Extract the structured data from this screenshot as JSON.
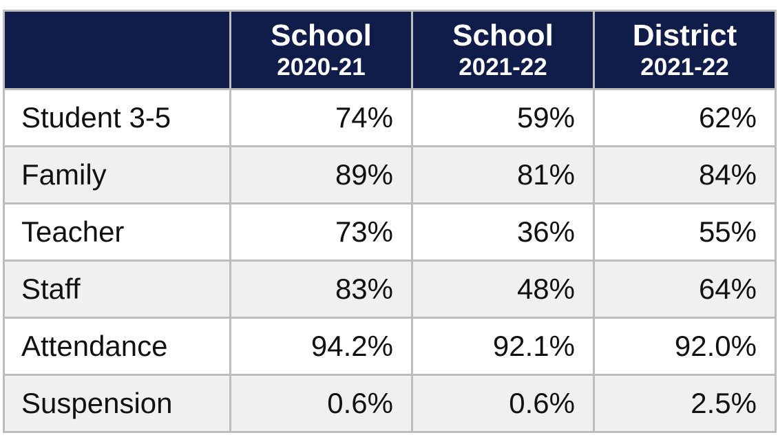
{
  "table": {
    "columns": [
      {
        "line1": "School",
        "line2": "2020-21"
      },
      {
        "line1": "School",
        "line2": "2021-22"
      },
      {
        "line1": "District",
        "line2": "2021-22"
      }
    ],
    "rows": [
      [
        "Student 3-5",
        "74%",
        "59%",
        "62%"
      ],
      [
        "Family",
        "89%",
        "81%",
        "84%"
      ],
      [
        "Teacher",
        "73%",
        "36%",
        "55%"
      ],
      [
        "Staff",
        "83%",
        "48%",
        "64%"
      ],
      [
        "Attendance",
        "94.2%",
        "92.1%",
        "92.0%"
      ],
      [
        "Suspension",
        "0.6%",
        "0.6%",
        "2.5%"
      ]
    ]
  }
}
